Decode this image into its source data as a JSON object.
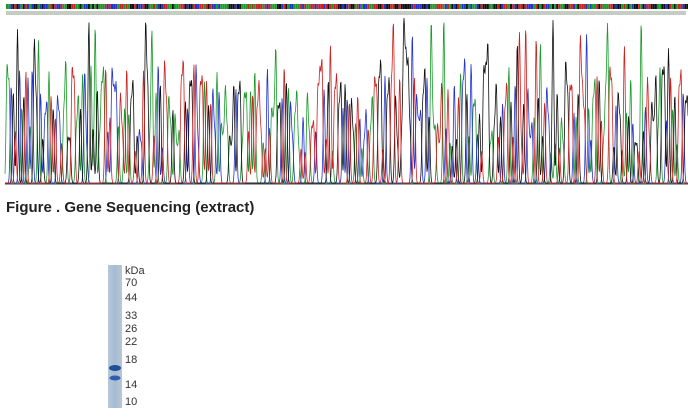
{
  "figure": {
    "caption": "Figure . Gene Sequencing (extract)"
  },
  "gel": {
    "unit": "kDa",
    "markers": [
      70,
      44,
      33,
      26,
      22,
      18,
      14,
      10
    ]
  }
}
